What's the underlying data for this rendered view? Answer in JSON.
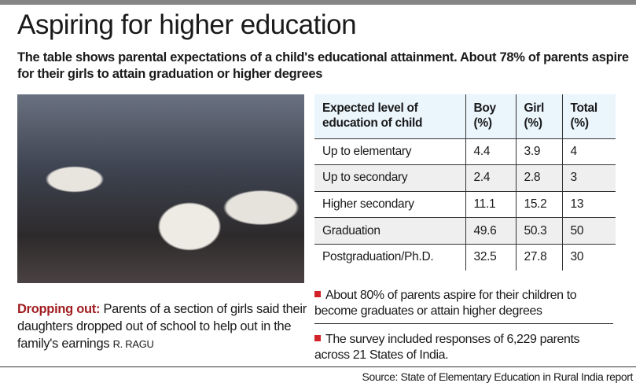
{
  "title": "Aspiring for higher education",
  "subtitle": "The table shows parental expectations of a child's educational attainment. About 78% of parents aspire for their girls to attain graduation or higher degrees",
  "caption": {
    "lead": "Dropping out:",
    "text": " Parents of a section of girls said their daughters dropped out of school to help out in the family's earnings ",
    "credit": "R. RAGU"
  },
  "table": {
    "headers": [
      "Expected level of education of child",
      "Boy (%)",
      "Girl (%)",
      "Total (%)"
    ],
    "rows": [
      [
        "Up to elementary",
        "4.4",
        "3.9",
        "4"
      ],
      [
        "Up to secondary",
        "2.4",
        "2.8",
        "3"
      ],
      [
        "Higher secondary",
        "11.1",
        "15.2",
        "13"
      ],
      [
        "Graduation",
        "49.6",
        "50.3",
        "50"
      ],
      [
        "Postgraduation/Ph.D.",
        "32.5",
        "27.8",
        "30"
      ]
    ]
  },
  "bullets": [
    "About 80% of parents aspire for their children to become graduates or attain higher degrees",
    "The survey included responses of 6,229 parents across 21 States of India."
  ],
  "source": "Source: State of Elementary Education in Rural India report",
  "colors": {
    "accent": "#a11d21",
    "bullet": "#d3232a",
    "header_bg": "#eaf5fc",
    "alt_row": "#efeff0"
  }
}
